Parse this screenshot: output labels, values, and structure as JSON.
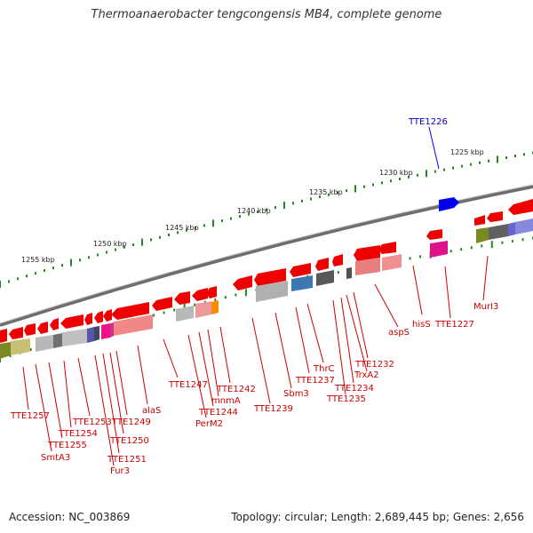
{
  "title": "Thermoanaerobacter tengcongensis MB4, complete genome",
  "footer": {
    "accession": "Accession: NC_003869",
    "summary": "Topology: circular; Length: 2,689,445 bp; Genes: 2,656"
  },
  "colors": {
    "gene": "#ee0000",
    "highlight": "#0000ee",
    "label": "#cc0000",
    "highlight_label": "#0000cc",
    "backbone": "#808080",
    "ticks": "#228822"
  },
  "kbp_ticks": [
    {
      "label": "1225 kbp",
      "kbp": 1225
    },
    {
      "label": "1230 kbp",
      "kbp": 1230
    },
    {
      "label": "1235 kbp",
      "kbp": 1235
    },
    {
      "label": "1240 kbp",
      "kbp": 1240
    },
    {
      "label": "1245 kbp",
      "kbp": 1245
    },
    {
      "label": "1250 kbp",
      "kbp": 1250
    },
    {
      "label": "1255 kbp",
      "kbp": 1255
    }
  ],
  "highlight_gene": {
    "label": "TTE1226"
  },
  "gene_labels": [
    "MurI3",
    "TTE1227",
    "hisS",
    "aspS",
    "TTE1232",
    "TrxA2",
    "TTE1234",
    "TTE1235",
    "ThrC",
    "TTE1237",
    "Sbm3",
    "TTE1239",
    "TTE1242",
    "mnmA",
    "TTE1244",
    "PerM2",
    "TTE1247",
    "alaS",
    "TTE1249",
    "TTE1250",
    "TTE1251",
    "Fur3",
    "TTE1253",
    "TTE1254",
    "TTE1255",
    "SmtA3",
    "TTE1257"
  ]
}
